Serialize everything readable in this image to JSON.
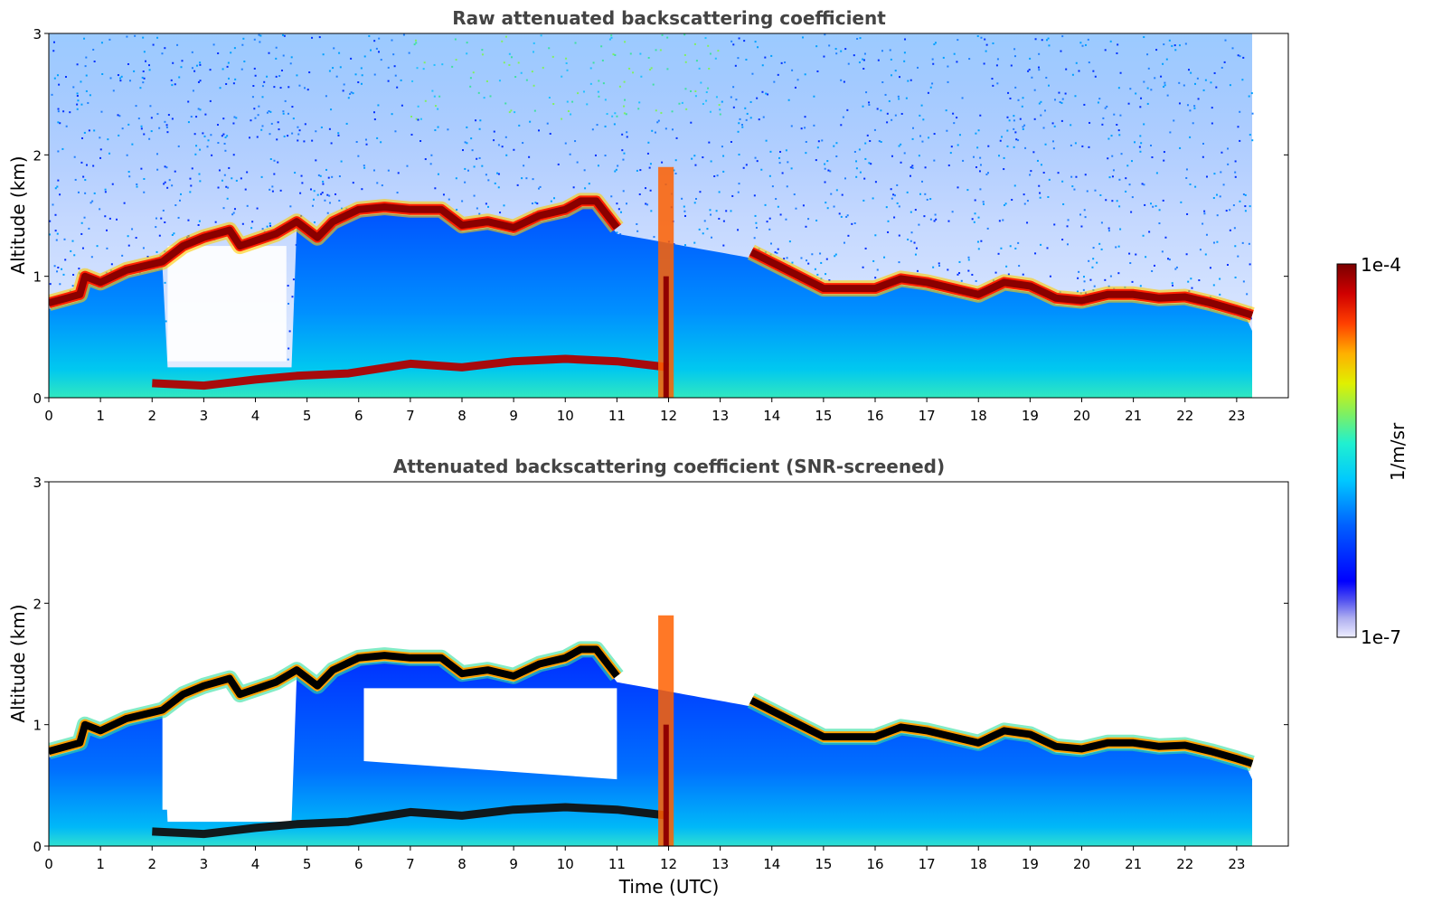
{
  "chart_data": [
    {
      "type": "heatmap",
      "title": "Raw attenuated backscattering coefficient",
      "xlabel": "",
      "ylabel": "Altitude (km)",
      "xlim": [
        0,
        24
      ],
      "ylim": [
        0,
        3
      ],
      "x_ticks": [
        "0",
        "1",
        "2",
        "3",
        "4",
        "5",
        "6",
        "7",
        "8",
        "9",
        "10",
        "11",
        "12",
        "13",
        "14",
        "15",
        "16",
        "17",
        "18",
        "19",
        "20",
        "21",
        "22",
        "23"
      ],
      "y_ticks": [
        "0",
        "1",
        "2",
        "3"
      ],
      "data_end_time": 23.3,
      "colormap": "jet",
      "layer_height_km": [
        [
          0,
          0.78
        ],
        [
          0.6,
          0.85
        ],
        [
          0.7,
          1.0
        ],
        [
          1.0,
          0.95
        ],
        [
          1.5,
          1.05
        ],
        [
          2.0,
          1.1
        ],
        [
          2.2,
          1.12
        ],
        [
          2.6,
          1.25
        ],
        [
          3.0,
          1.32
        ],
        [
          3.5,
          1.38
        ],
        [
          3.7,
          1.25
        ],
        [
          4.4,
          1.35
        ],
        [
          4.8,
          1.45
        ],
        [
          5.2,
          1.32
        ],
        [
          5.5,
          1.45
        ],
        [
          6.0,
          1.55
        ],
        [
          6.5,
          1.57
        ],
        [
          7.0,
          1.55
        ],
        [
          7.6,
          1.55
        ],
        [
          8.0,
          1.42
        ],
        [
          8.5,
          1.45
        ],
        [
          9.0,
          1.4
        ],
        [
          9.5,
          1.5
        ],
        [
          10.0,
          1.55
        ],
        [
          10.3,
          1.62
        ],
        [
          10.6,
          1.62
        ],
        [
          11.0,
          1.4
        ],
        [
          13.6,
          1.2
        ],
        [
          14.3,
          1.05
        ],
        [
          15.0,
          0.9
        ],
        [
          16.0,
          0.9
        ],
        [
          16.5,
          0.98
        ],
        [
          17.0,
          0.95
        ],
        [
          17.5,
          0.9
        ],
        [
          18.0,
          0.85
        ],
        [
          18.5,
          0.95
        ],
        [
          19.0,
          0.92
        ],
        [
          19.5,
          0.82
        ],
        [
          20.0,
          0.8
        ],
        [
          20.5,
          0.85
        ],
        [
          21.0,
          0.85
        ],
        [
          21.5,
          0.82
        ],
        [
          22.0,
          0.83
        ],
        [
          22.5,
          0.78
        ],
        [
          23.0,
          0.72
        ],
        [
          23.3,
          0.68
        ]
      ],
      "surface_layer_km": [
        [
          2.0,
          0.12
        ],
        [
          3.0,
          0.1
        ],
        [
          4.0,
          0.15
        ],
        [
          4.8,
          0.18
        ],
        [
          5.8,
          0.2
        ],
        [
          7.0,
          0.28
        ],
        [
          8.0,
          0.25
        ],
        [
          9.0,
          0.3
        ],
        [
          10.0,
          0.32
        ],
        [
          11.0,
          0.3
        ],
        [
          12.0,
          0.25
        ]
      ]
    },
    {
      "type": "heatmap",
      "title": "Attenuated backscattering coefficient (SNR-screened)",
      "xlabel": "Time (UTC)",
      "ylabel": "Altitude (km)",
      "xlim": [
        0,
        24
      ],
      "ylim": [
        0,
        3
      ],
      "x_ticks": [
        "0",
        "1",
        "2",
        "3",
        "4",
        "5",
        "6",
        "7",
        "8",
        "9",
        "10",
        "11",
        "12",
        "13",
        "14",
        "15",
        "16",
        "17",
        "18",
        "19",
        "20",
        "21",
        "22",
        "23"
      ],
      "y_ticks": [
        "0",
        "1",
        "2",
        "3"
      ],
      "data_end_time": 23.3,
      "colormap": "jet"
    }
  ],
  "colorbar": {
    "max_label": "1e-4",
    "min_label": "1e-7",
    "label": "1/m/sr",
    "colors": [
      "#e8e8f8",
      "#c4c4f0",
      "#8c8cf0",
      "#0000ff",
      "#0040ff",
      "#0080ff",
      "#00c0ff",
      "#00e8e0",
      "#40f0a0",
      "#a0f040",
      "#f0f000",
      "#ffb000",
      "#ff6000",
      "#ff1000",
      "#c00000",
      "#800000"
    ]
  }
}
